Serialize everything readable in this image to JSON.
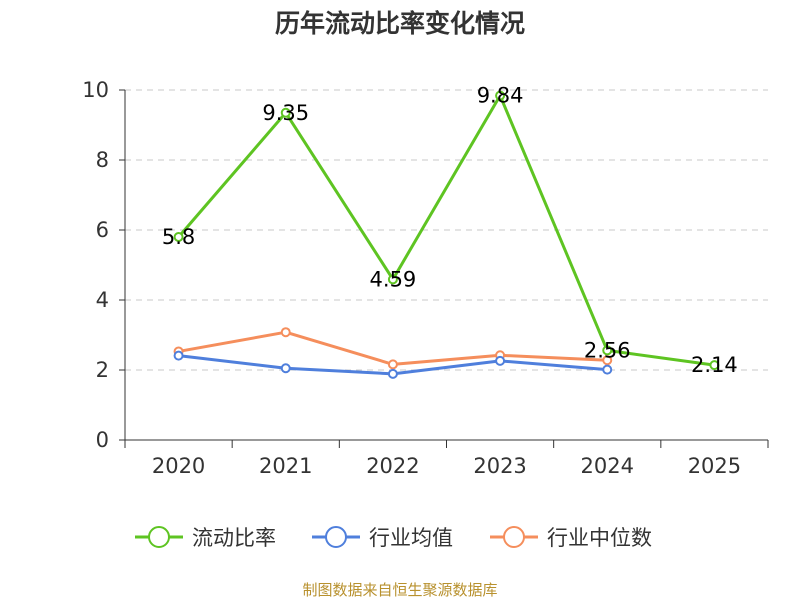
{
  "chart_data": {
    "type": "line",
    "title": "历年流动比率变化情况",
    "xlabel": "",
    "ylabel": "",
    "categories": [
      "2020",
      "2021",
      "2022",
      "2023",
      "2024",
      "2025"
    ],
    "ylim": [
      0,
      10
    ],
    "yticks": [
      "0",
      "2",
      "4",
      "6",
      "8",
      "10"
    ],
    "grid": true,
    "legend_position": "bottom",
    "series": [
      {
        "name": "流动比率",
        "color": "#5ec422",
        "values": [
          5.8,
          9.35,
          4.59,
          9.84,
          2.56,
          2.14
        ],
        "labels": [
          "5.8",
          "9.35",
          "4.59",
          "9.84",
          "2.56",
          "2.14"
        ]
      },
      {
        "name": "行业均值",
        "color": "#4f7fdc",
        "values": [
          2.41,
          2.05,
          1.89,
          2.26,
          2.01,
          null
        ]
      },
      {
        "name": "行业中位数",
        "color": "#f58e5c",
        "values": [
          2.53,
          3.08,
          2.16,
          2.42,
          2.28,
          null
        ]
      }
    ],
    "source": "制图数据来自恒生聚源数据库"
  }
}
